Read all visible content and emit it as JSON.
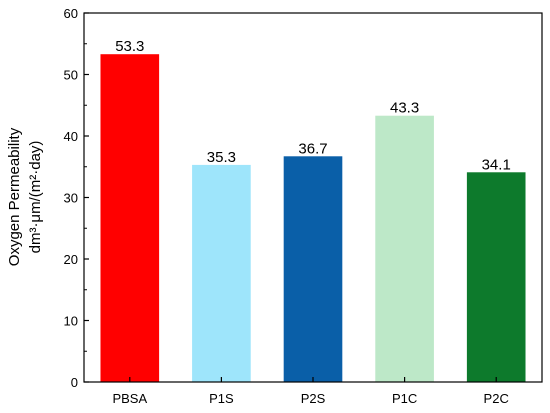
{
  "chart_data": {
    "type": "bar",
    "categories": [
      "PBSA",
      "P1S",
      "P2S",
      "P1C",
      "P2C"
    ],
    "values": [
      53.3,
      35.3,
      36.7,
      43.3,
      34.1
    ],
    "data_labels": [
      "53.3",
      "35.3",
      "36.7",
      "43.3",
      "34.1"
    ],
    "colors": [
      "#ff0000",
      "#9ee5fb",
      "#0a5fa8",
      "#bde8c8",
      "#0d7a2c"
    ],
    "title": "",
    "xlabel": "",
    "ylabel_line1": "Oxygen Permeability",
    "ylabel_line2": "dm³·μm/(m²·day)",
    "ylim": [
      0,
      60
    ],
    "yticks": [
      "0",
      "10",
      "20",
      "30",
      "40",
      "50",
      "60"
    ],
    "grid": false,
    "legend": "none"
  }
}
